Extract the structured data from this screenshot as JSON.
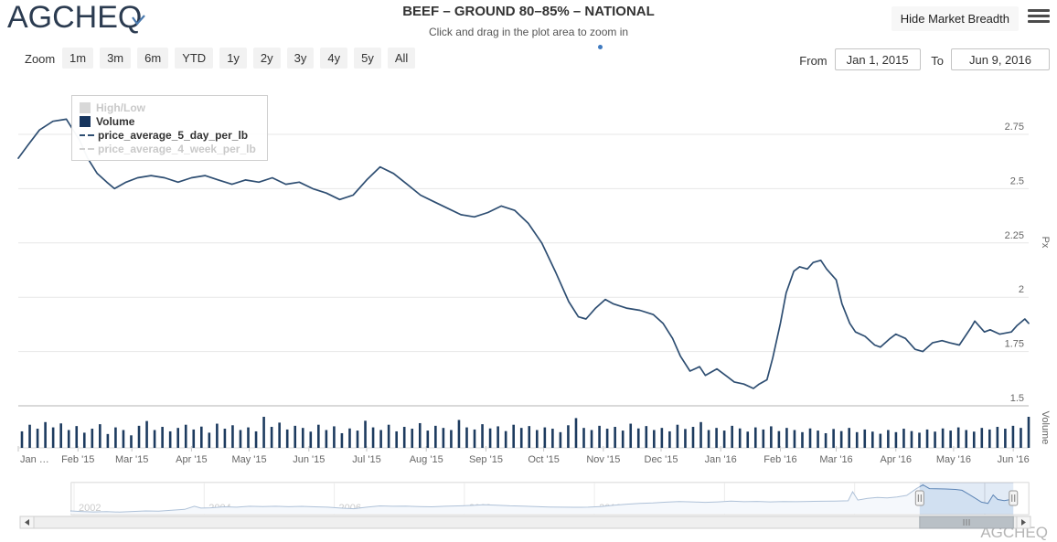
{
  "header": {
    "logo": "AGCHEQ",
    "title": "BEEF – GROUND 80–85% – NATIONAL",
    "subtitle": "Click and drag in the plot area to zoom in",
    "hide_breadth_label": "Hide Market Breadth"
  },
  "range_selector": {
    "zoom_label": "Zoom",
    "buttons": [
      "1m",
      "3m",
      "6m",
      "YTD",
      "1y",
      "2y",
      "3y",
      "4y",
      "5y",
      "All"
    ],
    "from_label": "From",
    "from_value": "Jan 1, 2015",
    "to_label": "To",
    "to_value": "Jun 9, 2016"
  },
  "legend": {
    "items": [
      {
        "label": "High/Low",
        "swatch": "square",
        "color": "#d8d8d8",
        "text_color": "#c9c9c9",
        "active": false
      },
      {
        "label": "Volume",
        "swatch": "square",
        "color": "#17355e",
        "text_color": "#333333",
        "active": true
      },
      {
        "label": "price_average_5_day_per_lb",
        "swatch": "line",
        "color": "#2e4e72",
        "text_color": "#333333",
        "active": true
      },
      {
        "label": "price_average_4_week_per_lb",
        "swatch": "line",
        "color": "#d0d0d0",
        "text_color": "#c9c9c9",
        "active": false
      }
    ]
  },
  "watermark": "AGCHEQ",
  "colors": {
    "price_line": "#2e4e72",
    "volume_bar": "#1d3b5f",
    "gridline": "#e7e7e7",
    "pane_separator": "#d9d9d9",
    "axis_label": "#666666",
    "nav_line": "#4d76a8",
    "nav_fill": "#e9f0f8",
    "nav_selection": "rgba(140,175,220,0.25)",
    "nav_mask": "rgba(255,255,255,0.55)",
    "scroll_thumb": "#b9c0c6",
    "accent_blue": "#3f7ac0"
  },
  "chart_data": {
    "type": "line",
    "title": "BEEF – GROUND 80–85% – NATIONAL",
    "y_axis": {
      "title": "Px",
      "ticks": [
        "2.75",
        "2.5",
        "2.25",
        "2",
        "1.75",
        "1.5"
      ],
      "tick_values": [
        2.75,
        2.5,
        2.25,
        2.0,
        1.75,
        1.5
      ],
      "range": [
        1.45,
        2.95
      ]
    },
    "volume_axis": {
      "title": "Volume"
    },
    "x_axis": {
      "range": [
        "2015-01-01",
        "2016-06-09"
      ],
      "ticks": [
        {
          "label": "Jan …",
          "date": "2015-01-01"
        },
        {
          "label": "Feb '15",
          "date": "2015-02-01"
        },
        {
          "label": "Mar '15",
          "date": "2015-03-01"
        },
        {
          "label": "Apr '15",
          "date": "2015-04-01"
        },
        {
          "label": "May '15",
          "date": "2015-05-01"
        },
        {
          "label": "Jun '15",
          "date": "2015-06-01"
        },
        {
          "label": "Jul '15",
          "date": "2015-07-01"
        },
        {
          "label": "Aug '15",
          "date": "2015-08-01"
        },
        {
          "label": "Sep '15",
          "date": "2015-09-01"
        },
        {
          "label": "Oct '15",
          "date": "2015-10-01"
        },
        {
          "label": "Nov '15",
          "date": "2015-11-01"
        },
        {
          "label": "Dec '15",
          "date": "2015-12-01"
        },
        {
          "label": "Jan '16",
          "date": "2016-01-01"
        },
        {
          "label": "Feb '16",
          "date": "2016-02-01"
        },
        {
          "label": "Mar '16",
          "date": "2016-03-01"
        },
        {
          "label": "Apr '16",
          "date": "2016-04-01"
        },
        {
          "label": "May '16",
          "date": "2016-05-01"
        },
        {
          "label": "Jun '16",
          "date": "2016-06-01"
        }
      ]
    },
    "series": [
      {
        "name": "price_average_5_day_per_lb",
        "type": "line",
        "unit": "$ per lb",
        "points": [
          [
            "2015-01-01",
            2.64
          ],
          [
            "2015-01-06",
            2.7
          ],
          [
            "2015-01-12",
            2.77
          ],
          [
            "2015-01-19",
            2.81
          ],
          [
            "2015-01-26",
            2.82
          ],
          [
            "2015-02-02",
            2.72
          ],
          [
            "2015-02-06",
            2.64
          ],
          [
            "2015-02-11",
            2.57
          ],
          [
            "2015-02-16",
            2.53
          ],
          [
            "2015-02-20",
            2.5
          ],
          [
            "2015-02-26",
            2.53
          ],
          [
            "2015-03-04",
            2.55
          ],
          [
            "2015-03-11",
            2.56
          ],
          [
            "2015-03-18",
            2.55
          ],
          [
            "2015-03-25",
            2.53
          ],
          [
            "2015-04-01",
            2.55
          ],
          [
            "2015-04-08",
            2.56
          ],
          [
            "2015-04-15",
            2.54
          ],
          [
            "2015-04-22",
            2.52
          ],
          [
            "2015-04-29",
            2.54
          ],
          [
            "2015-05-06",
            2.53
          ],
          [
            "2015-05-13",
            2.55
          ],
          [
            "2015-05-20",
            2.52
          ],
          [
            "2015-05-27",
            2.53
          ],
          [
            "2015-06-03",
            2.5
          ],
          [
            "2015-06-10",
            2.48
          ],
          [
            "2015-06-17",
            2.45
          ],
          [
            "2015-06-24",
            2.47
          ],
          [
            "2015-07-01",
            2.54
          ],
          [
            "2015-07-08",
            2.6
          ],
          [
            "2015-07-15",
            2.57
          ],
          [
            "2015-07-22",
            2.52
          ],
          [
            "2015-07-29",
            2.47
          ],
          [
            "2015-08-05",
            2.44
          ],
          [
            "2015-08-12",
            2.41
          ],
          [
            "2015-08-19",
            2.38
          ],
          [
            "2015-08-26",
            2.37
          ],
          [
            "2015-09-02",
            2.39
          ],
          [
            "2015-09-09",
            2.42
          ],
          [
            "2015-09-16",
            2.4
          ],
          [
            "2015-09-23",
            2.34
          ],
          [
            "2015-09-30",
            2.25
          ],
          [
            "2015-10-07",
            2.12
          ],
          [
            "2015-10-14",
            1.98
          ],
          [
            "2015-10-19",
            1.91
          ],
          [
            "2015-10-23",
            1.9
          ],
          [
            "2015-10-28",
            1.95
          ],
          [
            "2015-11-02",
            1.99
          ],
          [
            "2015-11-06",
            1.97
          ],
          [
            "2015-11-13",
            1.95
          ],
          [
            "2015-11-20",
            1.94
          ],
          [
            "2015-11-27",
            1.92
          ],
          [
            "2015-12-02",
            1.88
          ],
          [
            "2015-12-07",
            1.81
          ],
          [
            "2015-12-11",
            1.73
          ],
          [
            "2015-12-16",
            1.66
          ],
          [
            "2015-12-21",
            1.68
          ],
          [
            "2015-12-24",
            1.64
          ],
          [
            "2015-12-30",
            1.67
          ],
          [
            "2016-01-05",
            1.63
          ],
          [
            "2016-01-08",
            1.61
          ],
          [
            "2016-01-13",
            1.6
          ],
          [
            "2016-01-18",
            1.58
          ],
          [
            "2016-01-21",
            1.6
          ],
          [
            "2016-01-25",
            1.62
          ],
          [
            "2016-01-28",
            1.72
          ],
          [
            "2016-02-01",
            1.88
          ],
          [
            "2016-02-04",
            2.02
          ],
          [
            "2016-02-08",
            2.12
          ],
          [
            "2016-02-11",
            2.14
          ],
          [
            "2016-02-15",
            2.13
          ],
          [
            "2016-02-18",
            2.16
          ],
          [
            "2016-02-22",
            2.17
          ],
          [
            "2016-02-25",
            2.13
          ],
          [
            "2016-03-01",
            2.08
          ],
          [
            "2016-03-04",
            1.97
          ],
          [
            "2016-03-08",
            1.88
          ],
          [
            "2016-03-11",
            1.84
          ],
          [
            "2016-03-16",
            1.82
          ],
          [
            "2016-03-21",
            1.78
          ],
          [
            "2016-03-24",
            1.77
          ],
          [
            "2016-03-29",
            1.81
          ],
          [
            "2016-04-01",
            1.83
          ],
          [
            "2016-04-06",
            1.81
          ],
          [
            "2016-04-11",
            1.76
          ],
          [
            "2016-04-15",
            1.75
          ],
          [
            "2016-04-20",
            1.79
          ],
          [
            "2016-04-25",
            1.8
          ],
          [
            "2016-04-29",
            1.79
          ],
          [
            "2016-05-04",
            1.78
          ],
          [
            "2016-05-10",
            1.86
          ],
          [
            "2016-05-12",
            1.89
          ],
          [
            "2016-05-17",
            1.84
          ],
          [
            "2016-05-20",
            1.85
          ],
          [
            "2016-05-25",
            1.83
          ],
          [
            "2016-05-31",
            1.84
          ],
          [
            "2016-06-03",
            1.87
          ],
          [
            "2016-06-07",
            1.9
          ],
          [
            "2016-06-09",
            1.88
          ]
        ]
      },
      {
        "name": "Volume",
        "type": "column",
        "heights_norm": [
          0.45,
          0.7,
          0.55,
          0.8,
          0.6,
          0.75,
          0.5,
          0.65,
          0.4,
          0.55,
          0.72,
          0.35,
          0.6,
          0.5,
          0.3,
          0.66,
          0.84,
          0.5,
          0.62,
          0.45,
          0.58,
          0.7,
          0.52,
          0.63,
          0.4,
          0.74,
          0.55,
          0.68,
          0.5,
          0.6,
          0.45,
          1.0,
          0.62,
          0.78,
          0.52,
          0.66,
          0.58,
          0.44,
          0.7,
          0.5,
          0.64,
          0.38,
          0.56,
          0.48,
          0.85,
          0.6,
          0.5,
          0.7,
          0.45,
          0.62,
          0.55,
          0.76,
          0.48,
          0.66,
          0.58,
          0.5,
          0.88,
          0.6,
          0.52,
          0.72,
          0.56,
          0.64,
          0.46,
          0.7,
          0.58,
          0.65,
          0.5,
          0.6,
          0.55,
          0.42,
          0.68,
          0.95,
          0.58,
          0.5,
          0.66,
          0.55,
          0.62,
          0.48,
          0.74,
          0.56,
          0.65,
          0.5,
          0.58,
          0.45,
          0.7,
          0.54,
          0.62,
          0.8,
          0.5,
          0.58,
          0.48,
          0.66,
          0.56,
          0.44,
          0.6,
          0.52,
          0.64,
          0.46,
          0.58,
          0.5,
          0.42,
          0.56,
          0.48,
          0.38,
          0.54,
          0.46,
          0.58,
          0.42,
          0.52,
          0.44,
          0.36,
          0.5,
          0.42,
          0.55,
          0.46,
          0.4,
          0.52,
          0.44,
          0.56,
          0.48,
          0.6,
          0.5,
          0.44,
          0.58,
          0.52,
          0.62,
          0.55,
          0.66,
          0.58,
          1.0
        ]
      },
      {
        "name": "High/Low",
        "type": "arearange",
        "visible": false
      },
      {
        "name": "price_average_4_week_per_lb",
        "type": "line",
        "visible": false
      }
    ],
    "navigator": {
      "year_labels": [
        "2002",
        "2004",
        "2006",
        "2008",
        "2010",
        "2012",
        "2014",
        "2016"
      ],
      "year_values": [
        2002,
        2004,
        2006,
        2008,
        2010,
        2012,
        2014,
        2016
      ],
      "selection": {
        "from_year": 2015.0,
        "to_year": 2016.44
      },
      "points": [
        [
          2001.95,
          1.12
        ],
        [
          2002.1,
          1.08
        ],
        [
          2002.3,
          1.05
        ],
        [
          2002.5,
          1.07
        ],
        [
          2002.7,
          1.04
        ],
        [
          2002.9,
          1.08
        ],
        [
          2003.1,
          1.12
        ],
        [
          2003.3,
          1.1
        ],
        [
          2003.5,
          1.16
        ],
        [
          2003.7,
          1.22
        ],
        [
          2003.85,
          1.42
        ],
        [
          2003.95,
          1.3
        ],
        [
          2004.1,
          1.32
        ],
        [
          2004.3,
          1.38
        ],
        [
          2004.5,
          1.36
        ],
        [
          2004.7,
          1.42
        ],
        [
          2004.9,
          1.4
        ],
        [
          2005.1,
          1.42
        ],
        [
          2005.3,
          1.39
        ],
        [
          2005.5,
          1.41
        ],
        [
          2005.7,
          1.38
        ],
        [
          2005.9,
          1.36
        ],
        [
          2006.1,
          1.3
        ],
        [
          2006.3,
          1.26
        ],
        [
          2006.5,
          1.36
        ],
        [
          2006.7,
          1.44
        ],
        [
          2006.9,
          1.42
        ],
        [
          2007.1,
          1.43
        ],
        [
          2007.3,
          1.4
        ],
        [
          2007.5,
          1.38
        ],
        [
          2007.7,
          1.42
        ],
        [
          2007.9,
          1.44
        ],
        [
          2008.1,
          1.47
        ],
        [
          2008.3,
          1.52
        ],
        [
          2008.5,
          1.49
        ],
        [
          2008.7,
          1.45
        ],
        [
          2008.9,
          1.43
        ],
        [
          2009.1,
          1.4
        ],
        [
          2009.3,
          1.37
        ],
        [
          2009.5,
          1.36
        ],
        [
          2009.7,
          1.35
        ],
        [
          2009.9,
          1.36
        ],
        [
          2010.1,
          1.4
        ],
        [
          2010.3,
          1.48
        ],
        [
          2010.5,
          1.55
        ],
        [
          2010.7,
          1.6
        ],
        [
          2010.9,
          1.63
        ],
        [
          2011.1,
          1.68
        ],
        [
          2011.3,
          1.72
        ],
        [
          2011.5,
          1.7
        ],
        [
          2011.7,
          1.67
        ],
        [
          2011.9,
          1.7
        ],
        [
          2012.1,
          1.75
        ],
        [
          2012.3,
          1.71
        ],
        [
          2012.5,
          1.73
        ],
        [
          2012.7,
          1.7
        ],
        [
          2012.9,
          1.72
        ],
        [
          2013.1,
          1.71
        ],
        [
          2013.3,
          1.73
        ],
        [
          2013.5,
          1.74
        ],
        [
          2013.7,
          1.75
        ],
        [
          2013.9,
          1.77
        ],
        [
          2013.97,
          2.35
        ],
        [
          2014.05,
          1.82
        ],
        [
          2014.2,
          1.93
        ],
        [
          2014.35,
          1.99
        ],
        [
          2014.5,
          1.96
        ],
        [
          2014.65,
          2.02
        ],
        [
          2014.8,
          2.12
        ],
        [
          2014.95,
          2.55
        ],
        [
          2015.05,
          2.8
        ],
        [
          2015.15,
          2.55
        ],
        [
          2015.25,
          2.54
        ],
        [
          2015.4,
          2.53
        ],
        [
          2015.55,
          2.5
        ],
        [
          2015.65,
          2.45
        ],
        [
          2015.75,
          2.2
        ],
        [
          2015.85,
          1.95
        ],
        [
          2015.95,
          1.68
        ],
        [
          2016.05,
          1.6
        ],
        [
          2016.13,
          2.15
        ],
        [
          2016.2,
          1.85
        ],
        [
          2016.3,
          1.78
        ],
        [
          2016.38,
          1.84
        ],
        [
          2016.44,
          1.88
        ]
      ]
    }
  }
}
